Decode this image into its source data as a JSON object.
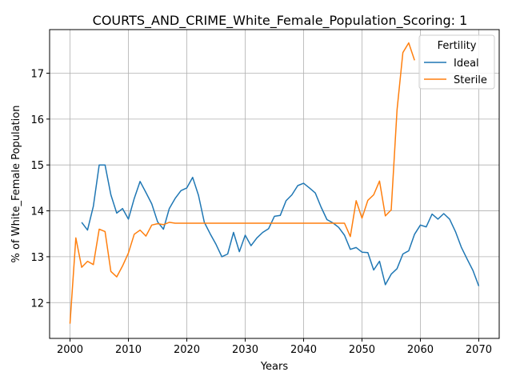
{
  "chart_data": {
    "type": "line",
    "title": "COURTS_AND_CRIME_White_Female_Population_Scoring: 1",
    "xlabel": "Years",
    "ylabel": "% of White_Female Population",
    "xlim": [
      1996.5,
      2073.5
    ],
    "ylim": [
      11.22,
      17.95
    ],
    "xticks": [
      2000,
      2010,
      2020,
      2030,
      2040,
      2050,
      2060,
      2070
    ],
    "yticks": [
      12,
      13,
      14,
      15,
      16,
      17
    ],
    "grid": true,
    "legend": {
      "title": "Fertility",
      "placement": "upper right"
    },
    "series": [
      {
        "name": "Ideal",
        "color": "#1f77b4",
        "x": [
          2002,
          2003,
          2004,
          2005,
          2006,
          2007,
          2008,
          2009,
          2010,
          2011,
          2012,
          2013,
          2014,
          2015,
          2016,
          2017,
          2018,
          2019,
          2020,
          2021,
          2022,
          2023,
          2024,
          2025,
          2026,
          2027,
          2028,
          2029,
          2030,
          2031,
          2032,
          2033,
          2034,
          2035,
          2036,
          2037,
          2038,
          2039,
          2040,
          2041,
          2042,
          2043,
          2044,
          2045,
          2046,
          2047,
          2048,
          2049,
          2050,
          2051,
          2052,
          2053,
          2054,
          2055,
          2056,
          2057,
          2058,
          2059,
          2060,
          2061,
          2062,
          2063,
          2064,
          2065,
          2066,
          2067,
          2068,
          2069,
          2070
        ],
        "values": [
          13.75,
          13.58,
          14.1,
          15.0,
          15.0,
          14.35,
          13.95,
          14.05,
          13.82,
          14.27,
          14.64,
          14.4,
          14.15,
          13.76,
          13.6,
          14.05,
          14.27,
          14.44,
          14.5,
          14.73,
          14.34,
          13.75,
          13.5,
          13.27,
          13.0,
          13.06,
          13.53,
          13.11,
          13.47,
          13.24,
          13.41,
          13.53,
          13.61,
          13.88,
          13.9,
          14.22,
          14.35,
          14.55,
          14.6,
          14.5,
          14.39,
          14.08,
          13.81,
          13.74,
          13.64,
          13.47,
          13.16,
          13.2,
          13.1,
          13.09,
          12.71,
          12.9,
          12.39,
          12.62,
          12.74,
          13.06,
          13.13,
          13.49,
          13.69,
          13.65,
          13.93,
          13.82,
          13.94,
          13.82,
          13.55,
          13.21,
          12.95,
          12.7,
          12.36
        ]
      },
      {
        "name": "Sterile",
        "color": "#ff7f0e",
        "x": [
          2000,
          2001,
          2002,
          2003,
          2004,
          2005,
          2006,
          2007,
          2008,
          2009,
          2010,
          2011,
          2012,
          2013,
          2014,
          2015,
          2016,
          2017,
          2018,
          2019,
          2020,
          2021,
          2022,
          2023,
          2024,
          2025,
          2026,
          2027,
          2028,
          2029,
          2030,
          2031,
          2032,
          2033,
          2034,
          2035,
          2036,
          2037,
          2038,
          2039,
          2040,
          2041,
          2042,
          2043,
          2044,
          2045,
          2046,
          2047,
          2048,
          2049,
          2050,
          2051,
          2052,
          2053,
          2054,
          2055,
          2056,
          2057,
          2058,
          2059
        ],
        "values": [
          11.54,
          13.41,
          12.77,
          12.9,
          12.83,
          13.6,
          13.55,
          12.68,
          12.56,
          12.8,
          13.08,
          13.49,
          13.58,
          13.45,
          13.69,
          13.72,
          13.7,
          13.75,
          13.73,
          13.73,
          13.73,
          13.73,
          13.73,
          13.73,
          13.73,
          13.73,
          13.73,
          13.73,
          13.73,
          13.73,
          13.73,
          13.73,
          13.73,
          13.73,
          13.73,
          13.73,
          13.73,
          13.73,
          13.73,
          13.73,
          13.73,
          13.73,
          13.73,
          13.73,
          13.73,
          13.73,
          13.73,
          13.73,
          13.44,
          14.22,
          13.84,
          14.23,
          14.35,
          14.65,
          13.89,
          14.02,
          16.2,
          17.45,
          17.66,
          17.28
        ]
      }
    ]
  }
}
